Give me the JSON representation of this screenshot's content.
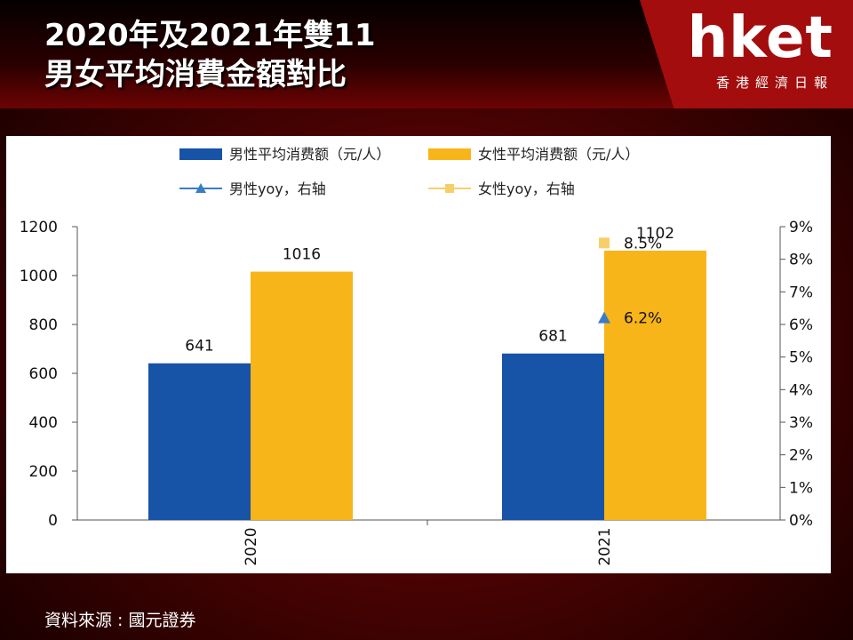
{
  "header": {
    "title_line1": "2020年及2021年雙11",
    "title_line2": "男女平均消費金額對比",
    "logo": "hket",
    "logo_sub": "香港經濟日報"
  },
  "footer": {
    "source": "資料來源 : 國元證券"
  },
  "colors": {
    "male": "#1753a6",
    "female": "#f7b51a",
    "male_yoy": "#3b7dc4",
    "female_yoy": "#f7cf6a"
  },
  "chart_data": {
    "type": "bar",
    "categories": [
      "2020",
      "2021"
    ],
    "series": [
      {
        "name": "男性平均消费额（元/人）",
        "values": [
          641,
          681
        ],
        "axis": "left"
      },
      {
        "name": "女性平均消费额（元/人）",
        "values": [
          1016,
          1102
        ],
        "axis": "left"
      },
      {
        "name": "男性yoy，右轴",
        "values": [
          null,
          6.2
        ],
        "labels": [
          "",
          "6.2%"
        ],
        "axis": "right",
        "marker": "triangle"
      },
      {
        "name": "女性yoy，右轴",
        "values": [
          null,
          8.5
        ],
        "labels": [
          "",
          "8.5%"
        ],
        "axis": "right",
        "marker": "square"
      }
    ],
    "left_axis": {
      "ylim": [
        0,
        1200
      ],
      "ticks": [
        "0",
        "200",
        "400",
        "600",
        "800",
        "1000",
        "1200"
      ]
    },
    "right_axis": {
      "ylim": [
        0,
        9
      ],
      "ticks": [
        "0%",
        "1%",
        "2%",
        "3%",
        "4%",
        "5%",
        "6%",
        "7%",
        "8%",
        "9%"
      ]
    },
    "legend_placement": "top",
    "grid": false
  }
}
